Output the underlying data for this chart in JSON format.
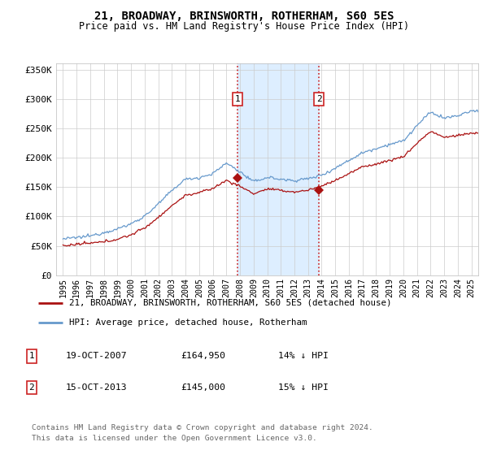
{
  "title": "21, BROADWAY, BRINSWORTH, ROTHERHAM, S60 5ES",
  "subtitle": "Price paid vs. HM Land Registry's House Price Index (HPI)",
  "legend_line1": "21, BROADWAY, BRINSWORTH, ROTHERHAM, S60 5ES (detached house)",
  "legend_line2": "HPI: Average price, detached house, Rotherham",
  "footer": "Contains HM Land Registry data © Crown copyright and database right 2024.\nThis data is licensed under the Open Government Licence v3.0.",
  "event1_label": "1",
  "event1_date": "19-OCT-2007",
  "event1_price": "£164,950",
  "event1_hpi": "14% ↓ HPI",
  "event2_label": "2",
  "event2_date": "15-OCT-2013",
  "event2_price": "£145,000",
  "event2_hpi": "15% ↓ HPI",
  "event1_year": 2007.8,
  "event2_year": 2013.8,
  "hpi_color": "#6699cc",
  "price_color": "#aa1111",
  "event_box_color": "#cc2222",
  "shaded_color": "#ddeeff",
  "ylim": [
    0,
    360000
  ],
  "yticks": [
    0,
    50000,
    100000,
    150000,
    200000,
    250000,
    300000,
    350000
  ],
  "ytick_labels": [
    "£0",
    "£50K",
    "£100K",
    "£150K",
    "£200K",
    "£250K",
    "£300K",
    "£350K"
  ],
  "xlim_start": 1994.5,
  "xlim_end": 2025.5,
  "t1_price": 164950,
  "t2_price": 145000
}
